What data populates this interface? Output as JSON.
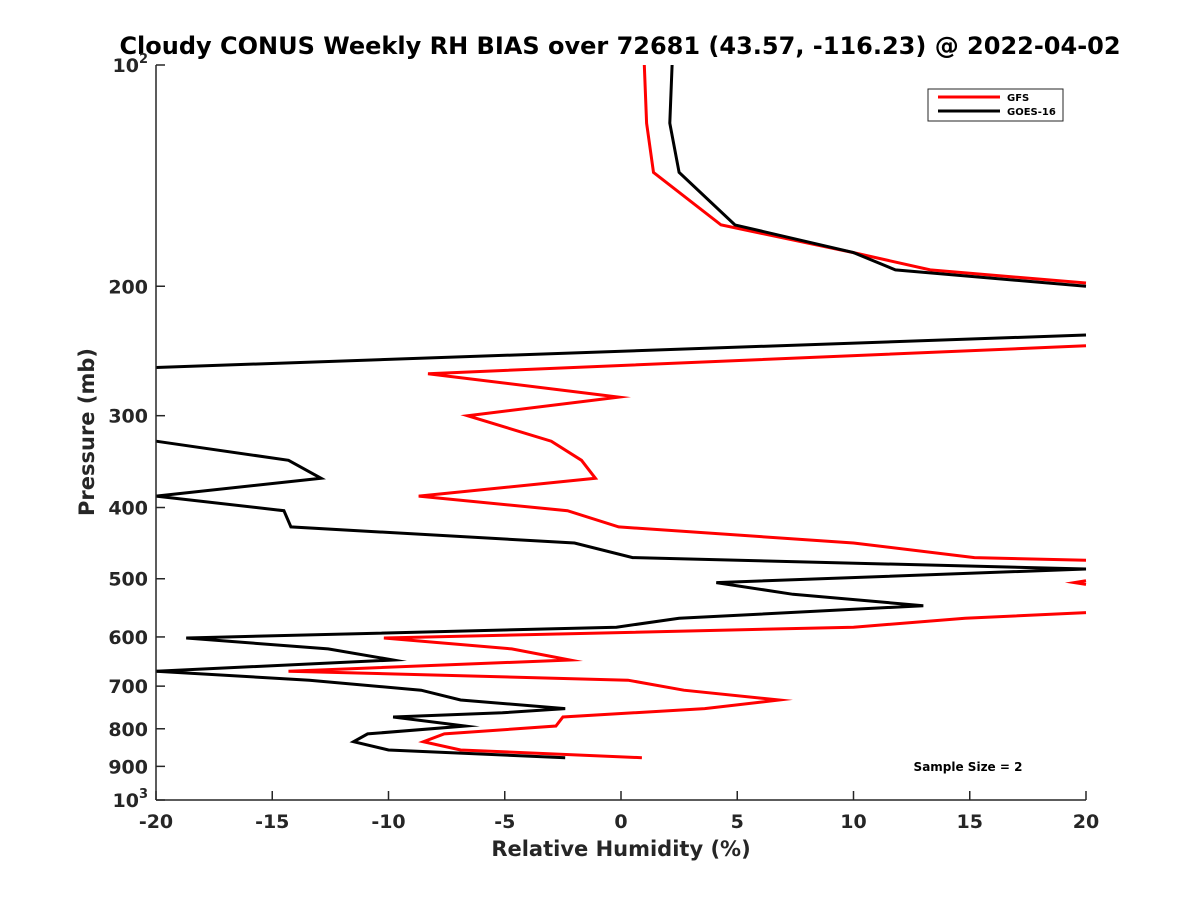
{
  "chart_data": {
    "type": "line",
    "title": "Cloudy CONUS Weekly RH BIAS over 72681 (43.57, -116.23) @ 2022-04-02",
    "xlabel": "Relative Humidity (%)",
    "ylabel": "Pressure (mb)",
    "xlim": [
      -20,
      20
    ],
    "ylim": [
      100,
      1000
    ],
    "y_scale": "log",
    "y_reversed": true,
    "grid": false,
    "legend_position": "top-right",
    "x_ticks": [
      -20,
      -15,
      -10,
      -5,
      0,
      5,
      10,
      15,
      20
    ],
    "x_tick_labels": [
      "-20",
      "-15",
      "-10",
      "-5",
      "0",
      "5",
      "10",
      "15",
      "20"
    ],
    "y_ticks": [
      {
        "value": 100,
        "base": "10",
        "exp": "2"
      },
      {
        "value": 200,
        "label": "200"
      },
      {
        "value": 300,
        "label": "300"
      },
      {
        "value": 400,
        "label": "400"
      },
      {
        "value": 500,
        "label": "500"
      },
      {
        "value": 600,
        "label": "600"
      },
      {
        "value": 700,
        "label": "700"
      },
      {
        "value": 800,
        "label": "800"
      },
      {
        "value": 900,
        "label": "900"
      },
      {
        "value": 1000,
        "base": "10",
        "exp": "3"
      }
    ],
    "annotation": "Sample Size = 2",
    "series": [
      {
        "name": "GFS",
        "color": "#ff0000",
        "segments": [
          [
            [
              1.0,
              100
            ],
            [
              1.1,
              120
            ],
            [
              1.4,
              140
            ],
            [
              4.3,
              165
            ],
            [
              10,
              180
            ],
            [
              13.3,
              190
            ],
            [
              20,
              198
            ]
          ],
          [
            [
              20,
              241
            ],
            [
              -8.3,
              263
            ],
            [
              -0.1,
              283
            ],
            [
              -6.6,
              300
            ],
            [
              -3.0,
              325
            ],
            [
              -1.7,
              345
            ],
            [
              -1.1,
              365
            ],
            [
              -8.7,
              386
            ],
            [
              -2.3,
              404
            ],
            [
              -0.1,
              425
            ],
            [
              10,
              447
            ],
            [
              15.2,
              468
            ],
            [
              20,
              472
            ]
          ],
          [
            [
              20,
              503
            ],
            [
              19.5,
              506
            ],
            [
              20,
              509
            ]
          ],
          [
            [
              20,
              556
            ],
            [
              14.8,
              566
            ],
            [
              10,
              582
            ],
            [
              -10.2,
              602
            ],
            [
              -4.7,
              623
            ],
            [
              -2.2,
              645
            ],
            [
              -14.3,
              668
            ],
            [
              0.3,
              687
            ],
            [
              2.7,
              709
            ],
            [
              6.8,
              731
            ],
            [
              3.6,
              751
            ],
            [
              -2.5,
              771
            ],
            [
              -2.8,
              793
            ],
            [
              -7.6,
              813
            ],
            [
              -8.5,
              833
            ],
            [
              -6.9,
              855
            ],
            [
              0.9,
              876
            ]
          ]
        ]
      },
      {
        "name": "GOES-16",
        "color": "#000000",
        "segments": [
          [
            [
              2.2,
              100
            ],
            [
              2.1,
              120
            ],
            [
              2.5,
              140
            ],
            [
              4.9,
              165
            ],
            [
              10,
              180
            ],
            [
              11.8,
              190
            ],
            [
              20,
              200
            ]
          ],
          [
            [
              20,
              233
            ],
            [
              -20,
              258
            ]
          ],
          [
            [
              -20,
              325
            ],
            [
              -14.3,
              345
            ],
            [
              -12.9,
              365
            ],
            [
              -20,
              386
            ]
          ],
          [
            [
              -20,
              386
            ],
            [
              -14.5,
              404
            ],
            [
              -14.2,
              425
            ],
            [
              -2,
              447
            ],
            [
              0.5,
              468
            ],
            [
              20,
              485
            ],
            [
              4.1,
              506
            ],
            [
              7.4,
              525
            ],
            [
              13,
              544
            ],
            [
              2.5,
              566
            ],
            [
              -0.2,
              582
            ],
            [
              -18.7,
              602
            ],
            [
              -12.6,
              623
            ],
            [
              -9.8,
              645
            ],
            [
              -20,
              668
            ]
          ],
          [
            [
              -20,
              668
            ],
            [
              -13.4,
              687
            ],
            [
              -8.6,
              709
            ],
            [
              -6.9,
              731
            ],
            [
              -2.4,
              751
            ],
            [
              -5.1,
              761
            ],
            [
              -9.8,
              771
            ],
            [
              -6.7,
              793
            ],
            [
              -10.9,
              813
            ],
            [
              -11.5,
              833
            ],
            [
              -10.0,
              855
            ],
            [
              -2.4,
              876
            ]
          ]
        ]
      }
    ]
  }
}
